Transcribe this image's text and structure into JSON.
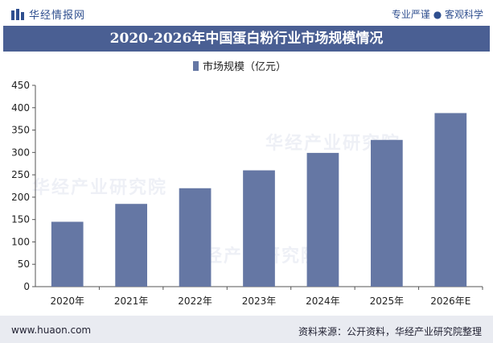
{
  "header": {
    "logo_text": "华经情报网",
    "slogan": "专业严谨 ● 客观科学"
  },
  "chart_data": {
    "type": "bar",
    "title": "2020-2026年中国蛋白粉行业市场规模情况",
    "categories": [
      "2020年",
      "2021年",
      "2022年",
      "2023年",
      "2024年",
      "2025年",
      "2026年E"
    ],
    "series": [
      {
        "name": "市场规模（亿元）",
        "values": [
          145,
          185,
          220,
          260,
          299,
          328,
          388
        ],
        "color": "#6577a4"
      }
    ],
    "ylim": [
      0,
      450
    ],
    "yticks": [
      0,
      50,
      100,
      150,
      200,
      250,
      300,
      350,
      400,
      450
    ],
    "legend_position": "top-center",
    "grid": false
  },
  "watermark": "华经产业研究院",
  "footer": {
    "url": "www.huaon.com",
    "source": "资料来源：公开资料，华经产业研究院整理"
  }
}
